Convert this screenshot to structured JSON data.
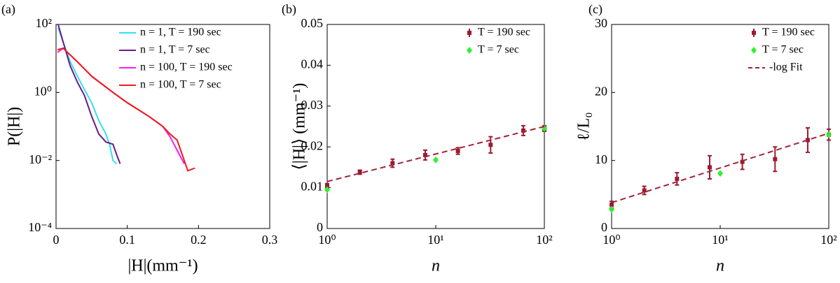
{
  "chart_data": [
    {
      "type": "line",
      "label": "(a)",
      "x_label": "|H|(mm⁻¹)",
      "y_label": "P(|H|)",
      "ylog": true,
      "legend": "upper right",
      "xlim": [
        0,
        0.3
      ],
      "xticks": [
        0,
        0.1,
        0.2,
        0.3
      ],
      "ylim": [
        0.0001,
        100
      ],
      "yticks": [
        {
          "value": 0.0001,
          "label": "10⁻⁴"
        },
        {
          "value": 0.01,
          "label": "10⁻²"
        },
        {
          "value": 1,
          "label": "10⁰"
        },
        {
          "value": 100,
          "label": "10²"
        }
      ],
      "series": [
        {
          "name": "n = 1, T = 190 sec",
          "color": "#33e0f0",
          "x": [
            0.003,
            0.01,
            0.02,
            0.03,
            0.04,
            0.05,
            0.06,
            0.07,
            0.075,
            0.08,
            0.085
          ],
          "values": [
            80,
            30,
            8,
            3,
            1.2,
            0.5,
            0.15,
            0.06,
            0.03,
            0.01,
            0.008
          ]
        },
        {
          "name": "n = 1, T = 7 sec",
          "color": "#6a1b8a",
          "x": [
            0.003,
            0.01,
            0.02,
            0.03,
            0.04,
            0.05,
            0.06,
            0.07,
            0.08,
            0.085,
            0.09
          ],
          "values": [
            100,
            30,
            6,
            2,
            0.8,
            0.2,
            0.06,
            0.035,
            0.03,
            0.015,
            0.008
          ]
        },
        {
          "name": "n = 100, T = 190 sec",
          "color": "#f020f0",
          "x": [
            0.002,
            0.01,
            0.03,
            0.05,
            0.08,
            0.1,
            0.13,
            0.15,
            0.16,
            0.17,
            0.18
          ],
          "values": [
            15,
            20,
            8,
            3,
            1,
            0.5,
            0.2,
            0.1,
            0.05,
            0.02,
            0.008
          ]
        },
        {
          "name": "n = 100, T = 7 sec",
          "color": "#f01818",
          "x": [
            0.002,
            0.01,
            0.03,
            0.05,
            0.08,
            0.1,
            0.13,
            0.15,
            0.16,
            0.17,
            0.18,
            0.185,
            0.195
          ],
          "values": [
            18,
            20,
            8,
            3,
            1,
            0.5,
            0.2,
            0.1,
            0.06,
            0.04,
            0.01,
            0.005,
            0.006
          ]
        }
      ]
    },
    {
      "type": "errorbar",
      "label": "(b)",
      "x_label": "n",
      "y_label": "⟨|H|⟩ (mm⁻¹)",
      "xlog": true,
      "legend": "upper right",
      "xlim": [
        1,
        100
      ],
      "xticks": [
        {
          "value": 1,
          "label": "10⁰"
        },
        {
          "value": 10,
          "label": "10¹"
        },
        {
          "value": 100,
          "label": "10²"
        }
      ],
      "ylim": [
        0,
        0.05
      ],
      "yticks": [
        0,
        0.01,
        0.02,
        0.03,
        0.04,
        0.05
      ],
      "series": [
        {
          "name": "T = 190 sec",
          "color": "#9b1b30",
          "marker": "square",
          "x": [
            1,
            2,
            4,
            8,
            16,
            32,
            64,
            100
          ],
          "values": [
            0.0105,
            0.0138,
            0.016,
            0.018,
            0.019,
            0.0205,
            0.024,
            0.0245
          ],
          "errors": [
            0.0005,
            0.0005,
            0.001,
            0.0012,
            0.0008,
            0.002,
            0.0012,
            0.0007
          ]
        },
        {
          "name": "T = 7 sec",
          "color": "#33ee33",
          "marker": "diamond",
          "x": [
            1,
            10,
            100
          ],
          "values": [
            0.0095,
            0.0168,
            0.0245
          ]
        },
        {
          "color": "#a0243a",
          "linestyle": "dashed",
          "x": [
            1,
            100
          ],
          "values": [
            0.0115,
            0.025
          ]
        }
      ]
    },
    {
      "type": "errorbar",
      "label": "(c)",
      "x_label": "n",
      "y_label": "ℓ/L₀",
      "xlog": true,
      "legend": "upper right",
      "xlim": [
        1,
        100
      ],
      "xticks": [
        {
          "value": 1,
          "label": "10⁰"
        },
        {
          "value": 10,
          "label": "10¹"
        },
        {
          "value": 100,
          "label": "10²"
        }
      ],
      "ylim": [
        0,
        30
      ],
      "yticks": [
        0,
        10,
        20,
        30
      ],
      "series": [
        {
          "name": "T = 190 sec",
          "color": "#9b1b30",
          "marker": "square",
          "x": [
            1,
            2,
            4,
            8,
            16,
            32,
            64,
            100
          ],
          "values": [
            3.5,
            5.6,
            7.3,
            9,
            9.8,
            10.2,
            13,
            13.8
          ],
          "errors": [
            0.5,
            0.6,
            0.9,
            1.7,
            1.1,
            1.8,
            1.8,
            0.8
          ]
        },
        {
          "name": "T = 7 sec",
          "color": "#33ee33",
          "marker": "diamond",
          "x": [
            1,
            10,
            100
          ],
          "values": [
            2.8,
            8.1,
            13.8
          ]
        },
        {
          "name": "-log Fit",
          "color": "#a0243a",
          "linestyle": "dashed",
          "x": [
            1,
            100
          ],
          "values": [
            3.8,
            14
          ]
        }
      ]
    }
  ]
}
